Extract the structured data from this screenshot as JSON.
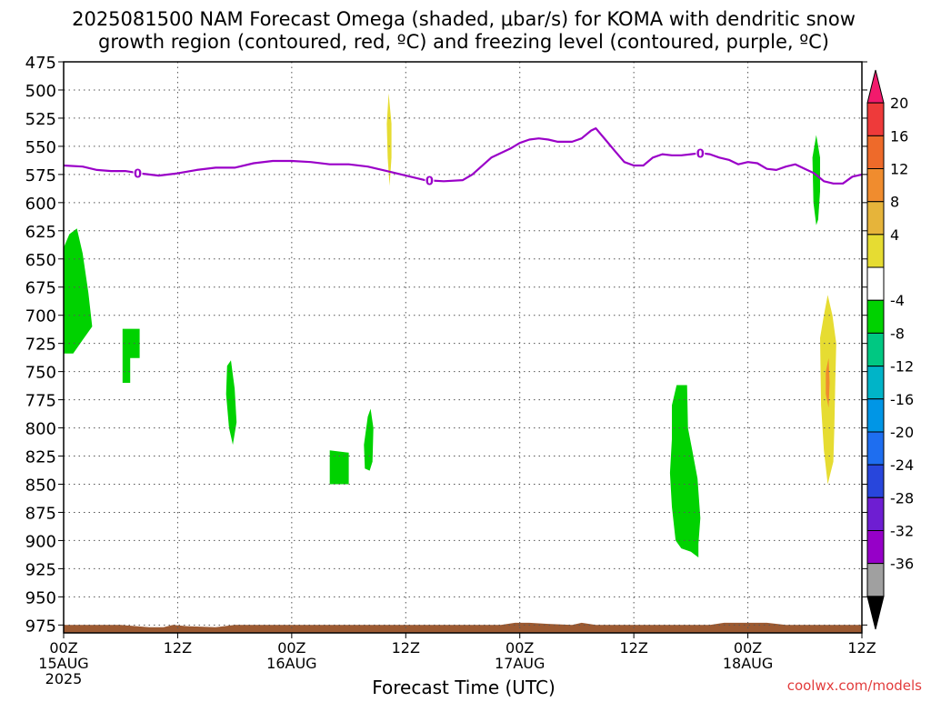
{
  "title_line1": "2025081500 NAM Forecast Omega (shaded, μbar/s) for KOMA with dendritic snow",
  "title_line2": "growth region (contoured, red, ºC) and freezing level (contoured, purple, ºC)",
  "credit": "coolwx.com/models",
  "colors": {
    "freezing_line": "#9a00c8",
    "terrain": "#9c5a32",
    "grid": "#555555",
    "credit": "#e23c3c"
  },
  "chart_data": {
    "type": "heatmap",
    "xlabel": "Forecast Time (UTC)",
    "xlim": [
      0,
      84
    ],
    "ylim": [
      475,
      982
    ],
    "y_reversed": true,
    "x_ticks": [
      {
        "x": 0,
        "lines": [
          "00Z",
          "15AUG",
          "2025"
        ]
      },
      {
        "x": 12,
        "lines": [
          "12Z"
        ]
      },
      {
        "x": 24,
        "lines": [
          "00Z",
          "16AUG"
        ]
      },
      {
        "x": 36,
        "lines": [
          "12Z"
        ]
      },
      {
        "x": 48,
        "lines": [
          "00Z",
          "17AUG"
        ]
      },
      {
        "x": 60,
        "lines": [
          "12Z"
        ]
      },
      {
        "x": 72,
        "lines": [
          "00Z",
          "18AUG"
        ]
      },
      {
        "x": 84,
        "lines": [
          "12Z"
        ]
      }
    ],
    "y_ticks": [
      475,
      500,
      525,
      550,
      575,
      600,
      625,
      650,
      675,
      700,
      725,
      750,
      775,
      800,
      825,
      850,
      875,
      900,
      925,
      950,
      975
    ],
    "grid": true,
    "colorbar": {
      "labels": [
        "20",
        "16",
        "12",
        "8",
        "4",
        "-4",
        "-8",
        "-12",
        "-16",
        "-20",
        "-24",
        "-28",
        "-32",
        "-36"
      ],
      "bins": [
        {
          "color": "#f21a6c",
          "shape": "top-arrow"
        },
        {
          "color": "#ee3a3a"
        },
        {
          "color": "#ee6a2a"
        },
        {
          "color": "#f08c2e"
        },
        {
          "color": "#e6b43a"
        },
        {
          "color": "#e6dc32"
        },
        {
          "color": "#ffffff"
        },
        {
          "color": "#00d200"
        },
        {
          "color": "#00c882"
        },
        {
          "color": "#00b4c8"
        },
        {
          "color": "#0096e6"
        },
        {
          "color": "#1e6ef0"
        },
        {
          "color": "#2846dc"
        },
        {
          "color": "#6e1ed2"
        },
        {
          "color": "#9600c8"
        },
        {
          "color": "#a0a0a0"
        },
        {
          "color": "#000000",
          "shape": "bottom-arrow"
        }
      ]
    },
    "omega_regions": [
      {
        "color": "#00d200",
        "boundary": [
          [
            0,
            640
          ],
          [
            0.6,
            628
          ],
          [
            1.4,
            623
          ],
          [
            2.0,
            645
          ],
          [
            2.6,
            680
          ],
          [
            3.0,
            710
          ],
          [
            2.0,
            722
          ],
          [
            1.0,
            734
          ],
          [
            0,
            734
          ]
        ]
      },
      {
        "color": "#00d200",
        "boundary": [
          [
            6.2,
            712
          ],
          [
            8.0,
            712
          ],
          [
            8.0,
            738
          ],
          [
            7.0,
            738
          ],
          [
            7.0,
            760
          ],
          [
            6.2,
            760
          ]
        ]
      },
      {
        "color": "#00d200",
        "boundary": [
          [
            17.2,
            745
          ],
          [
            17.6,
            740
          ],
          [
            18.0,
            765
          ],
          [
            18.2,
            795
          ],
          [
            17.8,
            815
          ],
          [
            17.4,
            800
          ],
          [
            17.1,
            770
          ]
        ]
      },
      {
        "color": "#00d200",
        "boundary": [
          [
            28.0,
            820
          ],
          [
            30.0,
            822
          ],
          [
            30.0,
            850
          ],
          [
            28.0,
            850
          ]
        ]
      },
      {
        "color": "#00d200",
        "boundary": [
          [
            31.6,
            815
          ],
          [
            32.0,
            790
          ],
          [
            32.3,
            783
          ],
          [
            32.6,
            800
          ],
          [
            32.5,
            830
          ],
          [
            32.2,
            838
          ],
          [
            31.7,
            836
          ]
        ]
      },
      {
        "color": "#00d200",
        "boundary": [
          [
            64.0,
            780
          ],
          [
            64.5,
            762
          ],
          [
            65.6,
            762
          ],
          [
            65.7,
            800
          ],
          [
            66.2,
            822
          ],
          [
            66.7,
            845
          ],
          [
            67.0,
            880
          ],
          [
            66.8,
            903
          ],
          [
            66.8,
            915
          ],
          [
            66.0,
            910
          ],
          [
            65.0,
            907
          ],
          [
            64.4,
            900
          ],
          [
            64.0,
            870
          ],
          [
            63.8,
            840
          ],
          [
            64.0,
            810
          ]
        ]
      },
      {
        "color": "#00d200",
        "boundary": [
          [
            78.8,
            560
          ],
          [
            79.2,
            540
          ],
          [
            79.6,
            560
          ],
          [
            79.6,
            590
          ],
          [
            79.4,
            615
          ],
          [
            79.2,
            620
          ],
          [
            78.9,
            600
          ]
        ]
      },
      {
        "color": "#e6dc32",
        "boundary": [
          [
            34.0,
            530
          ],
          [
            34.2,
            503
          ],
          [
            34.5,
            530
          ],
          [
            34.5,
            560
          ],
          [
            34.3,
            585
          ],
          [
            34.1,
            560
          ]
        ]
      },
      {
        "color": "#e6dc32",
        "boundary": [
          [
            79.6,
            720
          ],
          [
            80.0,
            700
          ],
          [
            80.4,
            682
          ],
          [
            80.9,
            700
          ],
          [
            81.3,
            725
          ],
          [
            81.2,
            760
          ],
          [
            81.1,
            800
          ],
          [
            81.0,
            830
          ],
          [
            80.4,
            850
          ],
          [
            80.0,
            820
          ],
          [
            79.7,
            780
          ]
        ]
      },
      {
        "color": "#f08c2e",
        "boundary": [
          [
            80.2,
            750
          ],
          [
            80.5,
            738
          ],
          [
            80.6,
            760
          ],
          [
            80.5,
            782
          ],
          [
            80.2,
            770
          ]
        ]
      }
    ],
    "freezing_level": {
      "label": "0",
      "x": [
        0,
        2,
        3.5,
        5,
        6.5,
        8,
        9,
        10,
        12,
        14,
        16,
        18,
        20,
        22,
        24,
        26,
        28,
        30,
        32,
        34,
        36,
        38,
        40,
        42,
        43,
        45,
        47,
        48,
        49,
        50,
        51,
        52,
        53.5,
        54.5,
        55.5,
        56,
        57,
        58,
        59,
        60,
        61,
        62,
        63,
        64,
        65,
        66,
        67,
        68,
        69,
        70,
        71,
        72,
        73,
        74,
        75,
        76,
        77,
        78,
        79,
        80,
        81,
        82,
        83,
        84
      ],
      "y": [
        567,
        568,
        571,
        572,
        572,
        574,
        575,
        576,
        574,
        571,
        569,
        569,
        565,
        563,
        563,
        564,
        566,
        566,
        568,
        572,
        576,
        580,
        581,
        580,
        575,
        560,
        552,
        547,
        544,
        543,
        544,
        546,
        546,
        543,
        536,
        534,
        544,
        554,
        564,
        567,
        567,
        560,
        557,
        558,
        558,
        557,
        556,
        557,
        560,
        562,
        566,
        564,
        565,
        570,
        571,
        568,
        566,
        570,
        574,
        581,
        583,
        583,
        577,
        575
      ],
      "label_x": [
        7.8,
        38.5,
        67
      ]
    },
    "terrain": {
      "x": [
        0,
        3,
        6,
        9,
        10.5,
        11.5,
        13,
        16,
        18,
        22,
        30,
        40,
        46,
        47.5,
        49,
        51,
        53.5,
        54.5,
        56,
        60,
        68,
        69.5,
        71,
        74,
        76,
        84
      ],
      "top": [
        975,
        975,
        975,
        977,
        977,
        975,
        976,
        977,
        975,
        975,
        975,
        975,
        975,
        973,
        973,
        974,
        975,
        973,
        975,
        975,
        975,
        973,
        973,
        973,
        975,
        975
      ]
    }
  }
}
